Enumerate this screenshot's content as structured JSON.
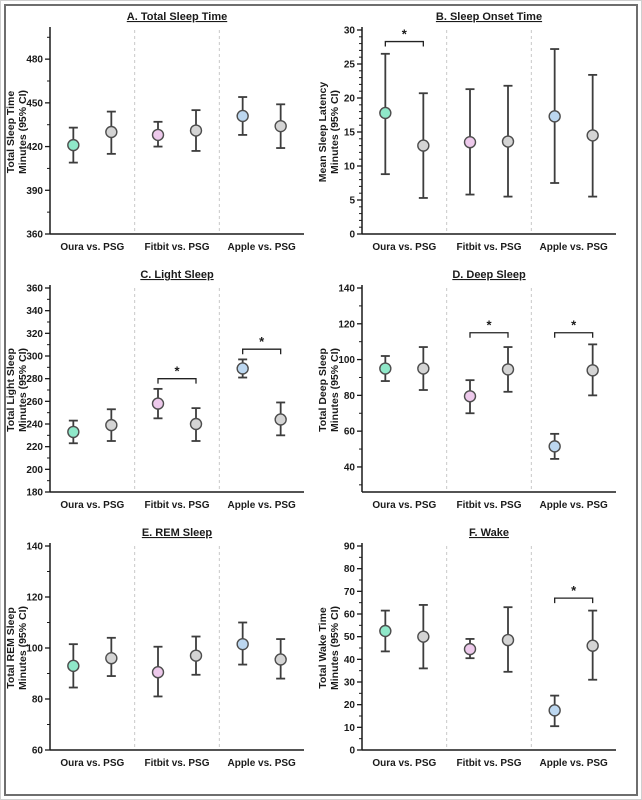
{
  "figure": {
    "description": "Six-panel forest-style plot comparing consumer sleep wearables (Oura, Fitbit, Apple) against PSG with 95% confidence intervals",
    "border_color": "#6e6e6e",
    "background": "#ffffff",
    "colors": {
      "Oura": "#8FE8C9",
      "Fitbit": "#EDC9EB",
      "Apple": "#BCD7F0",
      "PSG": "#D4D4D4",
      "error_bar": "#3d3d3d",
      "marker_outline": "#4d4d4d",
      "axis": "#1a1a1a",
      "separator": "#c8c8c8",
      "sig_bracket": "#222222"
    },
    "significance_symbol": "*"
  },
  "chart_data": [
    {
      "type": "scatter",
      "panel": "A",
      "title": "A. Total Sleep Time",
      "ylabel_line1": "Total Sleep Time",
      "ylabel_line2": "Minutes (95% CI)",
      "ylim": [
        360,
        500
      ],
      "yticks": [
        360,
        390,
        420,
        450,
        480
      ],
      "ytick_step": 30,
      "minor_divisions": 2,
      "categories": [
        "Oura vs. PSG",
        "Fitbit vs. PSG",
        "Apple vs. PSG"
      ],
      "pairs": [
        {
          "label": "Oura vs. PSG",
          "device": "Oura",
          "device_mean": 421,
          "device_ci": [
            409,
            433
          ],
          "psg_mean": 430,
          "psg_ci": [
            415,
            444
          ],
          "sig": false,
          "sig_y": null
        },
        {
          "label": "Fitbit vs. PSG",
          "device": "Fitbit",
          "device_mean": 428,
          "device_ci": [
            420,
            437
          ],
          "psg_mean": 431,
          "psg_ci": [
            417,
            445
          ],
          "sig": false,
          "sig_y": null
        },
        {
          "label": "Apple vs. PSG",
          "device": "Apple",
          "device_mean": 441,
          "device_ci": [
            428,
            454
          ],
          "psg_mean": 434,
          "psg_ci": [
            419,
            449
          ],
          "sig": false,
          "sig_y": null
        }
      ]
    },
    {
      "type": "scatter",
      "panel": "B",
      "title": "B. Sleep Onset Time",
      "ylabel_line1": "Mean Sleep Latency",
      "ylabel_line2": "Minutes (95% CI)",
      "ylim": [
        0,
        30
      ],
      "yticks": [
        0,
        5,
        10,
        15,
        20,
        25,
        30
      ],
      "ytick_step": 5,
      "minor_divisions": 5,
      "categories": [
        "Oura vs. PSG",
        "Fitbit vs. PSG",
        "Apple vs. PSG"
      ],
      "pairs": [
        {
          "label": "Oura vs. PSG",
          "device": "Oura",
          "device_mean": 17.8,
          "device_ci": [
            8.8,
            26.5
          ],
          "psg_mean": 13,
          "psg_ci": [
            5.3,
            20.7
          ],
          "sig": true,
          "sig_y": 28.3
        },
        {
          "label": "Fitbit vs. PSG",
          "device": "Fitbit",
          "device_mean": 13.5,
          "device_ci": [
            5.8,
            21.3
          ],
          "psg_mean": 13.6,
          "psg_ci": [
            5.5,
            21.8
          ],
          "sig": false,
          "sig_y": null
        },
        {
          "label": "Apple vs. PSG",
          "device": "Apple",
          "device_mean": 17.3,
          "device_ci": [
            7.5,
            27.2
          ],
          "psg_mean": 14.5,
          "psg_ci": [
            5.5,
            23.4
          ],
          "sig": false,
          "sig_y": null
        }
      ]
    },
    {
      "type": "scatter",
      "panel": "C",
      "title": "C. Light Sleep",
      "ylabel_line1": "Total Light Sleep",
      "ylabel_line2": "Minutes (95% CI)",
      "ylim": [
        180,
        360
      ],
      "yticks": [
        180,
        200,
        220,
        240,
        260,
        280,
        300,
        320,
        340,
        360
      ],
      "ytick_step": 20,
      "minor_divisions": 2,
      "categories": [
        "Oura vs. PSG",
        "Fitbit vs. PSG",
        "Apple vs. PSG"
      ],
      "pairs": [
        {
          "label": "Oura vs. PSG",
          "device": "Oura",
          "device_mean": 233,
          "device_ci": [
            223,
            243
          ],
          "psg_mean": 239,
          "psg_ci": [
            225,
            253
          ],
          "sig": false,
          "sig_y": null
        },
        {
          "label": "Fitbit vs. PSG",
          "device": "Fitbit",
          "device_mean": 258,
          "device_ci": [
            245,
            271
          ],
          "psg_mean": 240,
          "psg_ci": [
            225,
            254
          ],
          "sig": true,
          "sig_y": 280
        },
        {
          "label": "Apple vs. PSG",
          "device": "Apple",
          "device_mean": 289,
          "device_ci": [
            281,
            297
          ],
          "psg_mean": 244,
          "psg_ci": [
            230,
            259
          ],
          "sig": true,
          "sig_y": 306
        }
      ]
    },
    {
      "type": "scatter",
      "panel": "D",
      "title": "D. Deep Sleep",
      "ylabel_line1": "Total Deep Sleep",
      "ylabel_line2": "Minutes (95% CI)",
      "ylim": [
        26,
        140
      ],
      "yticks": [
        40,
        60,
        80,
        100,
        120,
        140
      ],
      "ytick_step": 20,
      "minor_divisions": 2,
      "categories": [
        "Oura vs. PSG",
        "Fitbit vs. PSG",
        "Apple vs. PSG"
      ],
      "pairs": [
        {
          "label": "Oura vs. PSG",
          "device": "Oura",
          "device_mean": 95,
          "device_ci": [
            88,
            102
          ],
          "psg_mean": 95,
          "psg_ci": [
            83,
            107
          ],
          "sig": false,
          "sig_y": null
        },
        {
          "label": "Fitbit vs. PSG",
          "device": "Fitbit",
          "device_mean": 79.5,
          "device_ci": [
            70,
            88.5
          ],
          "psg_mean": 94.5,
          "psg_ci": [
            82,
            107
          ],
          "sig": true,
          "sig_y": 115
        },
        {
          "label": "Apple vs. PSG",
          "device": "Apple",
          "device_mean": 51.5,
          "device_ci": [
            44.5,
            58.5
          ],
          "psg_mean": 94,
          "psg_ci": [
            80,
            108.5
          ],
          "sig": true,
          "sig_y": 115
        }
      ]
    },
    {
      "type": "scatter",
      "panel": "E",
      "title": "E. REM Sleep",
      "ylabel_line1": "Total REM Sleep",
      "ylabel_line2": "Minutes (95% CI)",
      "ylim": [
        60,
        140
      ],
      "yticks": [
        60,
        80,
        100,
        120,
        140
      ],
      "ytick_step": 20,
      "minor_divisions": 2,
      "categories": [
        "Oura vs. PSG",
        "Fitbit vs. PSG",
        "Apple vs. PSG"
      ],
      "pairs": [
        {
          "label": "Oura vs. PSG",
          "device": "Oura",
          "device_mean": 93,
          "device_ci": [
            84.5,
            101.5
          ],
          "psg_mean": 96,
          "psg_ci": [
            89,
            104
          ],
          "sig": false,
          "sig_y": null
        },
        {
          "label": "Fitbit vs. PSG",
          "device": "Fitbit",
          "device_mean": 90.5,
          "device_ci": [
            81,
            100.5
          ],
          "psg_mean": 97,
          "psg_ci": [
            89.5,
            104.5
          ],
          "sig": false,
          "sig_y": null
        },
        {
          "label": "Apple vs. PSG",
          "device": "Apple",
          "device_mean": 101.5,
          "device_ci": [
            93.5,
            110
          ],
          "psg_mean": 95.5,
          "psg_ci": [
            88,
            103.5
          ],
          "sig": false,
          "sig_y": null
        }
      ]
    },
    {
      "type": "scatter",
      "panel": "F",
      "title": "F. Wake",
      "ylabel_line1": "Total Wake Time",
      "ylabel_line2": "Minutes (95% CI)",
      "ylim": [
        0,
        90
      ],
      "yticks": [
        0,
        10,
        20,
        30,
        40,
        50,
        60,
        70,
        80,
        90
      ],
      "ytick_step": 10,
      "minor_divisions": 2,
      "categories": [
        "Oura vs. PSG",
        "Fitbit vs. PSG",
        "Apple vs. PSG"
      ],
      "pairs": [
        {
          "label": "Oura vs. PSG",
          "device": "Oura",
          "device_mean": 52.5,
          "device_ci": [
            43.5,
            61.5
          ],
          "psg_mean": 50,
          "psg_ci": [
            36,
            64
          ],
          "sig": false,
          "sig_y": null
        },
        {
          "label": "Fitbit vs. PSG",
          "device": "Fitbit",
          "device_mean": 44.5,
          "device_ci": [
            40.5,
            49
          ],
          "psg_mean": 48.5,
          "psg_ci": [
            34.5,
            63
          ],
          "sig": false,
          "sig_y": null
        },
        {
          "label": "Apple vs. PSG",
          "device": "Apple",
          "device_mean": 17.5,
          "device_ci": [
            10.5,
            24
          ],
          "psg_mean": 46,
          "psg_ci": [
            31,
            61.5
          ],
          "sig": true,
          "sig_y": 67
        }
      ]
    }
  ]
}
